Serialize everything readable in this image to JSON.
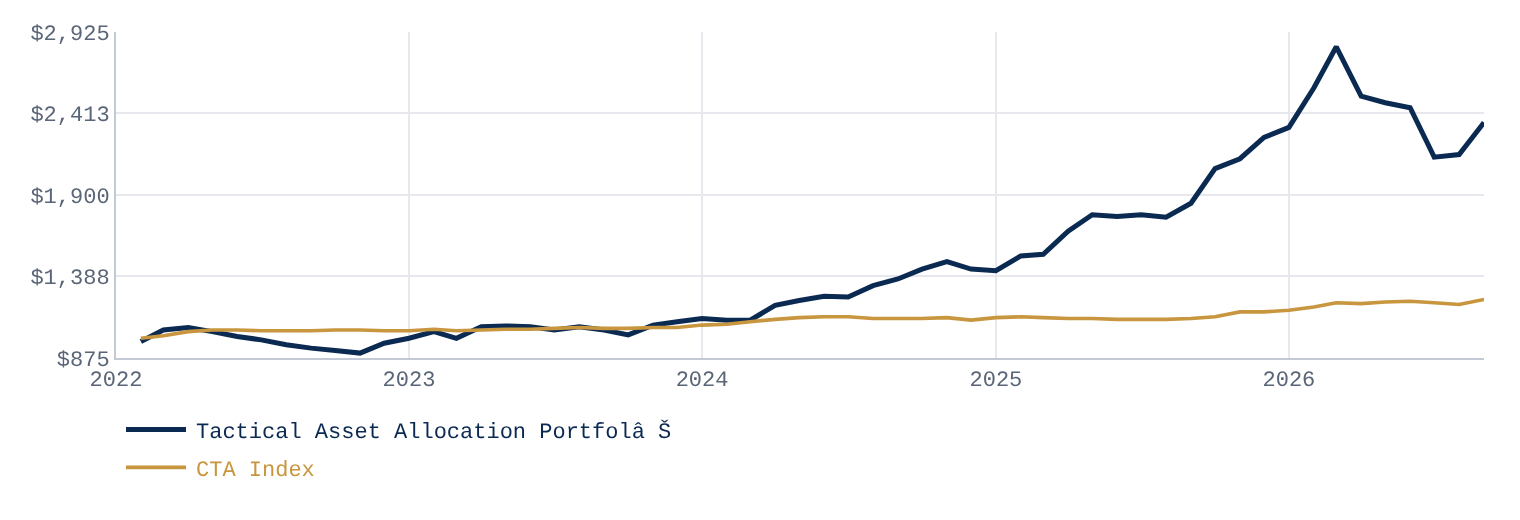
{
  "chart_data": {
    "type": "line",
    "x": [
      "2022-02",
      "2022-03",
      "2022-04",
      "2022-05",
      "2022-06",
      "2022-07",
      "2022-08",
      "2022-09",
      "2022-10",
      "2022-11",
      "2022-12",
      "2023-01",
      "2023-02",
      "2023-03",
      "2023-04",
      "2023-05",
      "2023-06",
      "2023-07",
      "2023-08",
      "2023-09",
      "2023-10",
      "2023-11",
      "2023-12",
      "2024-01",
      "2024-02",
      "2024-03",
      "2024-04",
      "2024-05",
      "2024-06",
      "2024-07",
      "2024-08",
      "2024-09",
      "2024-10",
      "2024-11",
      "2024-12",
      "2025-01",
      "2025-02",
      "2025-03",
      "2025-04",
      "2025-05",
      "2025-06",
      "2025-07",
      "2025-08",
      "2025-09",
      "2025-10",
      "2025-11",
      "2025-12",
      "2026-01",
      "2026-02",
      "2026-03",
      "2026-04",
      "2026-05",
      "2026-06",
      "2026-07",
      "2026-08",
      "2026-09"
    ],
    "series": [
      {
        "name": "Tactical Asset Allocation Portfolâ Š",
        "color": "#0b2a52",
        "values": [
          979,
          1051,
          1067,
          1041,
          1010,
          989,
          958,
          937,
          922,
          906,
          968,
          999,
          1041,
          999,
          1072,
          1077,
          1072,
          1051,
          1072,
          1051,
          1020,
          1082,
          1103,
          1123,
          1113,
          1113,
          1206,
          1237,
          1263,
          1258,
          1330,
          1372,
          1434,
          1481,
          1434,
          1424,
          1517,
          1527,
          1672,
          1776,
          1765,
          1776,
          1760,
          1848,
          2066,
          2128,
          2262,
          2325,
          2573,
          2832,
          2521,
          2480,
          2449,
          2138,
          2154,
          2356
        ]
      },
      {
        "name": "CTA Index",
        "color": "#c8963e",
        "values": [
          999,
          1015,
          1041,
          1051,
          1051,
          1046,
          1046,
          1046,
          1051,
          1051,
          1046,
          1046,
          1056,
          1046,
          1051,
          1056,
          1056,
          1061,
          1067,
          1061,
          1061,
          1067,
          1067,
          1082,
          1087,
          1103,
          1118,
          1129,
          1134,
          1134,
          1123,
          1123,
          1123,
          1129,
          1113,
          1129,
          1134,
          1129,
          1123,
          1123,
          1118,
          1118,
          1118,
          1123,
          1134,
          1165,
          1165,
          1175,
          1196,
          1222,
          1217,
          1227,
          1232,
          1222,
          1211,
          1243
        ]
      }
    ],
    "xlim": [
      "2022-01",
      "2026-09"
    ],
    "xticks": [
      "2022",
      "2023",
      "2024",
      "2025",
      "2026"
    ],
    "ylim": [
      875,
      2925
    ],
    "yticks": [
      {
        "value": 875,
        "label": "$875"
      },
      {
        "value": 1388,
        "label": "$1,388"
      },
      {
        "value": 1900,
        "label": "$1,900"
      },
      {
        "value": 2413,
        "label": "$2,413"
      },
      {
        "value": 2925,
        "label": "$2,925"
      }
    ],
    "grid": true,
    "legend": "bottom",
    "marker": "none",
    "line_style": "solid"
  }
}
